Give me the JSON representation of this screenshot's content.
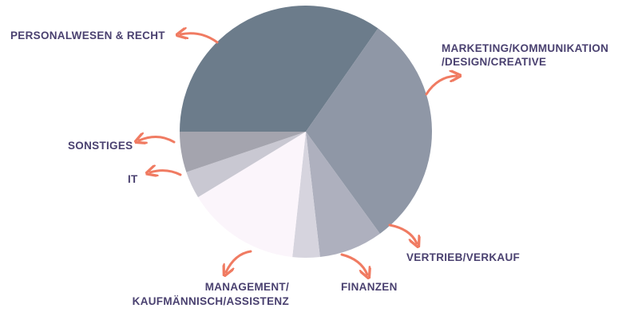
{
  "chart_data": {
    "type": "pie",
    "slices": [
      {
        "label": "PERSONALWESEN & RECHT",
        "value": 34.7,
        "color": "#6c7c8b"
      },
      {
        "label": "MARKETING/KOMMUNIKATION /DESIGN/CREATIVE",
        "value": 30.3,
        "color": "#8f97a6"
      },
      {
        "label": "VERTRIEB/VERKAUF",
        "value": 8.2,
        "color": "#aeb0be"
      },
      {
        "label": "FINANZEN",
        "value": 3.5,
        "color": "#d6d4de"
      },
      {
        "label": "MANAGEMENT/ KAUFMÄNNISCH/ASSISTENZ",
        "value": 14.6,
        "color": "#fbf5fb"
      },
      {
        "label": "IT",
        "value": 3.5,
        "color": "#c9c8d2"
      },
      {
        "label": "SONSTIGES",
        "value": 5.2,
        "color": "#a4a4ae"
      }
    ],
    "legend": "none",
    "arrow_color": "#f07b62"
  },
  "labels": {
    "personalwesen": "PERSONALWESEN & RECHT",
    "marketing_line1": "MARKETING/KOMMUNIKATION",
    "marketing_line2": "/DESIGN/CREATIVE",
    "vertrieb": "VERTRIEB/VERKAUF",
    "finanzen": "FINANZEN",
    "management_line1": "MANAGEMENT/",
    "management_line2": "KAUFMÄNNISCH/ASSISTENZ",
    "it": "IT",
    "sonstiges": "SONSTIGES"
  }
}
